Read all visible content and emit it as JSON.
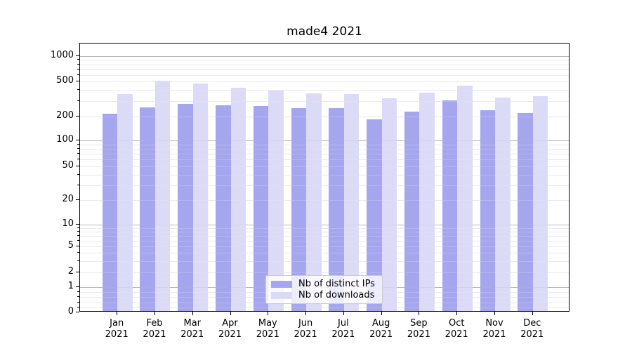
{
  "title": "made4 2021",
  "chart_data": {
    "type": "bar",
    "title": "made4 2021",
    "categories": [
      "Jan 2021",
      "Feb 2021",
      "Mar 2021",
      "Apr 2021",
      "May 2021",
      "Jun 2021",
      "Jul 2021",
      "Aug 2021",
      "Sep 2021",
      "Oct 2021",
      "Nov 2021",
      "Dec 2021"
    ],
    "series": [
      {
        "key": "distinct-ips",
        "name": "Nb of distinct IPs",
        "color": "#a6a6ef",
        "values": [
          210,
          250,
          275,
          265,
          260,
          245,
          245,
          180,
          225,
          300,
          230,
          215
        ]
      },
      {
        "key": "downloads",
        "name": "Nb of downloads",
        "color": "#dbdbf8",
        "values": [
          355,
          500,
          465,
          415,
          385,
          360,
          350,
          315,
          365,
          440,
          325,
          335
        ]
      }
    ],
    "xlabel": "",
    "ylabel": "",
    "yscale": "symlog-asinh",
    "ylim": [
      0,
      1400
    ],
    "y_ticks": [
      0,
      1,
      2,
      5,
      10,
      20,
      50,
      100,
      200,
      500,
      1000
    ],
    "grid": "horizontal major and minor",
    "legend_position": "lower center"
  },
  "colors": {
    "grid_major": "#b8b8b8",
    "grid_minor": "#eaeaea",
    "axis": "#000000",
    "legend_border": "#cccccc"
  }
}
